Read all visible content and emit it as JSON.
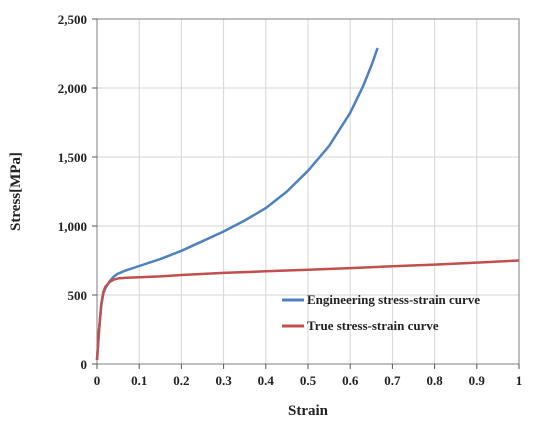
{
  "chart_data": {
    "type": "line",
    "title": "",
    "xlabel": "Strain",
    "ylabel": "Stress[MPa]",
    "xlim": [
      0,
      1
    ],
    "ylim": [
      0,
      2500
    ],
    "x_ticks": [
      0,
      0.1,
      0.2,
      0.3,
      0.4,
      0.5,
      0.6,
      0.7,
      0.8,
      0.9,
      1
    ],
    "x_tick_labels": [
      "0",
      "0.1",
      "0.2",
      "0.3",
      "0.4",
      "0.5",
      "0.6",
      "0.7",
      "0.8",
      "0.9",
      "1"
    ],
    "y_ticks": [
      0,
      500,
      1000,
      1500,
      2000,
      2500
    ],
    "y_tick_labels": [
      "0",
      "500",
      "1,000",
      "1,500",
      "2,000",
      "2,500"
    ],
    "grid": true,
    "legend_position": "bottom-right",
    "series": [
      {
        "name": "Engineering stress-strain curve",
        "color": "#4f81bd",
        "points": [
          [
            0,
            30
          ],
          [
            0.005,
            250
          ],
          [
            0.01,
            420
          ],
          [
            0.015,
            510
          ],
          [
            0.02,
            550
          ],
          [
            0.03,
            600
          ],
          [
            0.04,
            635
          ],
          [
            0.05,
            655
          ],
          [
            0.07,
            680
          ],
          [
            0.1,
            710
          ],
          [
            0.15,
            760
          ],
          [
            0.2,
            820
          ],
          [
            0.25,
            890
          ],
          [
            0.3,
            960
          ],
          [
            0.35,
            1040
          ],
          [
            0.4,
            1130
          ],
          [
            0.45,
            1250
          ],
          [
            0.5,
            1400
          ],
          [
            0.55,
            1580
          ],
          [
            0.6,
            1820
          ],
          [
            0.63,
            2010
          ],
          [
            0.65,
            2160
          ],
          [
            0.665,
            2290
          ]
        ]
      },
      {
        "name": "True stress-strain curve",
        "color": "#c0504d",
        "points": [
          [
            0,
            30
          ],
          [
            0.005,
            250
          ],
          [
            0.01,
            430
          ],
          [
            0.015,
            520
          ],
          [
            0.02,
            560
          ],
          [
            0.03,
            595
          ],
          [
            0.04,
            612
          ],
          [
            0.05,
            620
          ],
          [
            0.07,
            625
          ],
          [
            0.1,
            628
          ],
          [
            0.15,
            635
          ],
          [
            0.2,
            645
          ],
          [
            0.3,
            660
          ],
          [
            0.4,
            672
          ],
          [
            0.5,
            683
          ],
          [
            0.6,
            695
          ],
          [
            0.7,
            708
          ],
          [
            0.8,
            720
          ],
          [
            0.9,
            735
          ],
          [
            1.0,
            750
          ]
        ]
      }
    ]
  }
}
